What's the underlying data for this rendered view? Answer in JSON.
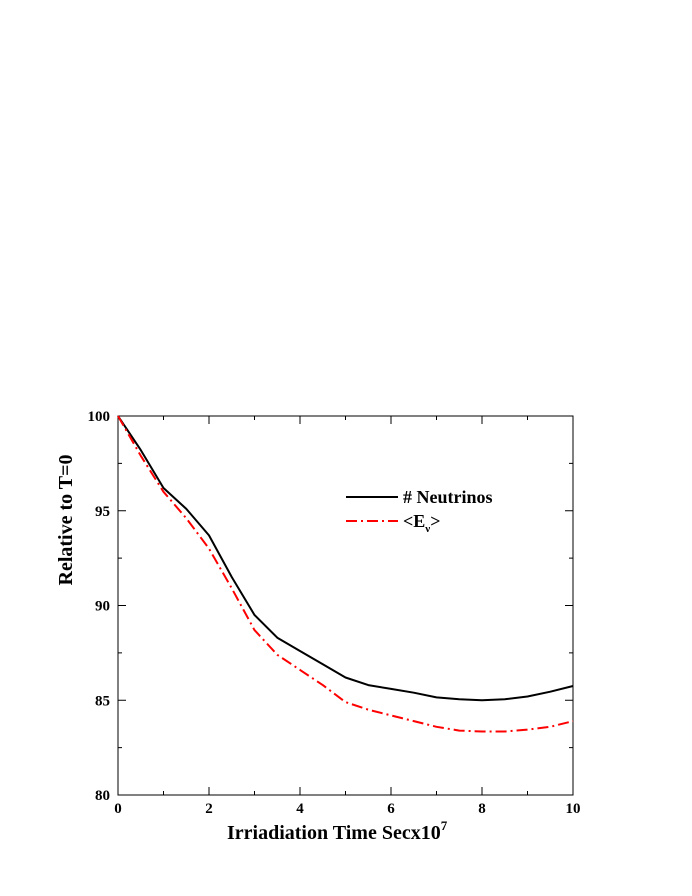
{
  "chart_data": {
    "type": "line",
    "xlabel": "Irriadiation Time Secx10",
    "xlabel_exponent": "7",
    "ylabel": "Relative to T=0",
    "xlim": [
      0,
      10
    ],
    "ylim": [
      80,
      100
    ],
    "xticks": [
      0,
      2,
      4,
      6,
      8,
      10
    ],
    "yticks": [
      80,
      85,
      90,
      95,
      100
    ],
    "grid": false,
    "legend_position": "upper-right",
    "series": [
      {
        "name": "# Neutrinos",
        "color": "#000000",
        "dash": "solid",
        "x": [
          0,
          0.5,
          1.0,
          1.5,
          2.0,
          2.5,
          3.0,
          3.5,
          4.0,
          4.5,
          5.0,
          5.5,
          6.0,
          6.5,
          7.0,
          7.5,
          8.0,
          8.5,
          9.0,
          9.5,
          10.0
        ],
        "y": [
          100,
          98.2,
          96.2,
          95.1,
          93.7,
          91.5,
          89.5,
          88.3,
          87.6,
          86.9,
          86.2,
          85.8,
          85.6,
          85.4,
          85.15,
          85.05,
          85.0,
          85.05,
          85.2,
          85.45,
          85.75
        ]
      },
      {
        "name": "<E",
        "name_subscript": "ν",
        "name_suffix": ">",
        "color": "#ff0000",
        "dash": "dash-dot",
        "x": [
          0,
          0.5,
          1.0,
          1.5,
          2.0,
          2.5,
          3.0,
          3.5,
          4.0,
          4.5,
          5.0,
          5.5,
          6.0,
          6.5,
          7.0,
          7.5,
          8.0,
          8.5,
          9.0,
          9.5,
          10.0
        ],
        "y": [
          100,
          97.9,
          96.0,
          94.6,
          93.0,
          90.9,
          88.7,
          87.4,
          86.6,
          85.8,
          84.9,
          84.5,
          84.2,
          83.9,
          83.6,
          83.4,
          83.35,
          83.35,
          83.45,
          83.6,
          83.9
        ]
      }
    ]
  }
}
